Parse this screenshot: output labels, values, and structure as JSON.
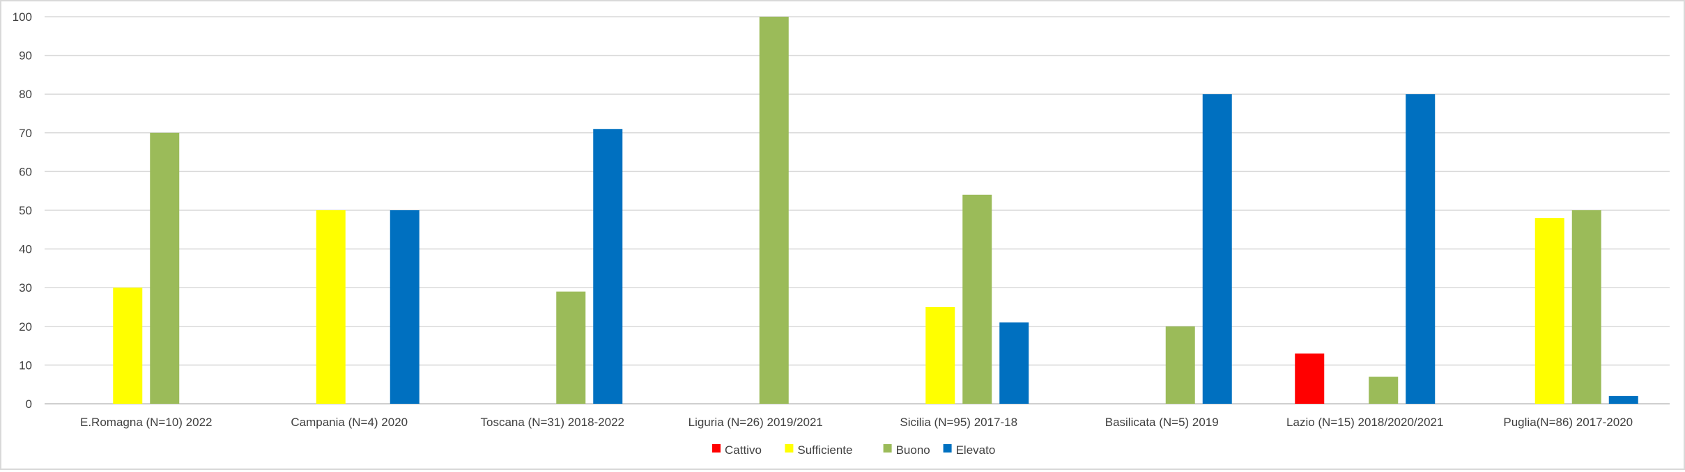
{
  "chart_data": {
    "type": "bar",
    "title": "",
    "xlabel": "",
    "ylabel": "",
    "ylim": [
      0,
      100
    ],
    "yticks": [
      0,
      10,
      20,
      30,
      40,
      50,
      60,
      70,
      80,
      90,
      100
    ],
    "grid": true,
    "legend_position": "bottom",
    "categories": [
      "E.Romagna (N=10) 2022",
      "Campania (N=4) 2020",
      "Toscana (N=31) 2018-2022",
      "Liguria (N=26) 2019/2021",
      "Sicilia (N=95) 2017-18",
      "Basilicata (N=5) 2019",
      "Lazio (N=15) 2018/2020/2021",
      "Puglia(N=86) 2017-2020"
    ],
    "series": [
      {
        "name": "Cattivo",
        "color": "#ff0000",
        "values": [
          0,
          0,
          0,
          0,
          0,
          0,
          13,
          0
        ]
      },
      {
        "name": "Sufficiente",
        "color": "#ffff00",
        "values": [
          30,
          50,
          0,
          0,
          25,
          0,
          0,
          48
        ]
      },
      {
        "name": "Buono",
        "color": "#9bbb59",
        "values": [
          70,
          0,
          29,
          100,
          54,
          20,
          7,
          50
        ]
      },
      {
        "name": "Elevato",
        "color": "#0070c0",
        "values": [
          0,
          50,
          71,
          0,
          21,
          80,
          80,
          2
        ]
      }
    ]
  }
}
